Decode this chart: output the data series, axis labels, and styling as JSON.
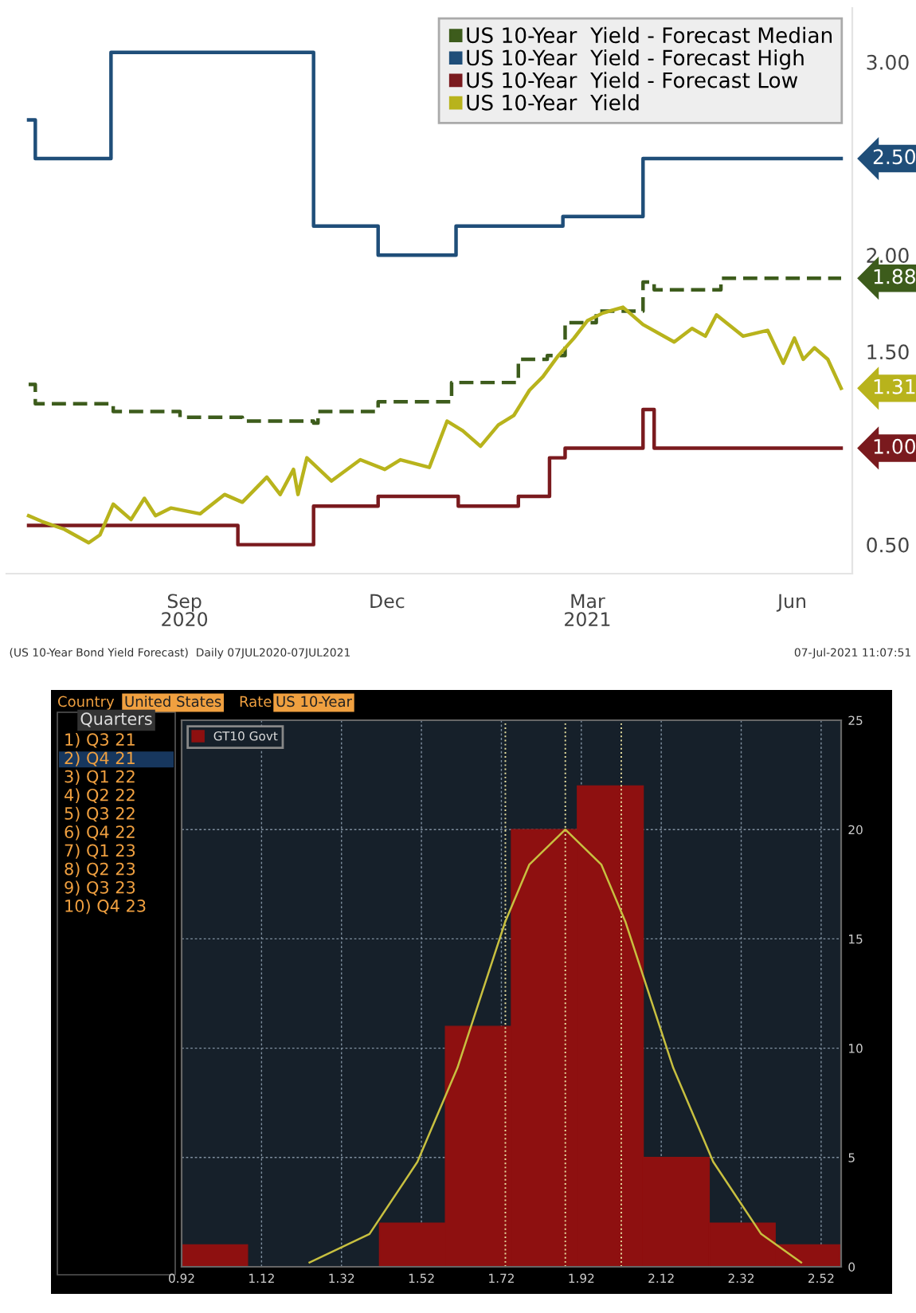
{
  "chart_data": [
    {
      "type": "line",
      "xlim": [
        "2020-06-27",
        "2021-07-12"
      ],
      "ylim": [
        0.35,
        3.28
      ],
      "xticks": [
        {
          "value": "2020-09-15",
          "label": "Sep\n2020"
        },
        {
          "value": "2020-12-15",
          "label": "Dec"
        },
        {
          "value": "2021-03-15",
          "label": "Mar\n2021"
        },
        {
          "value": "2021-06-15",
          "label": "Jun"
        }
      ],
      "yticks": [
        {
          "value": 0.5,
          "label": "0.50"
        },
        {
          "value": 1.5,
          "label": "1.50"
        },
        {
          "value": 2.0,
          "label": "2.00"
        },
        {
          "value": 3.0,
          "label": "3.00"
        }
      ],
      "legend": "top right",
      "grid": false,
      "annotations": [
        "(US 10-Year Bond Yield Forecast)  Daily 07JUL2020-07JUL2021",
        "07-Jul-2021 11:07:51"
      ],
      "series": [
        {
          "name": "US 10-Year  Yield - Forecast Median",
          "type": "step",
          "line_style": "dashed",
          "color": "#3d5c1c",
          "x": [
            "2020-07-07",
            "2020-07-10",
            "2020-08-14",
            "2020-09-13",
            "2020-10-11",
            "2020-11-12",
            "2020-11-14",
            "2020-12-11",
            "2021-01-13",
            "2021-02-12",
            "2021-02-25",
            "2021-03-05",
            "2021-03-19",
            "2021-04-09",
            "2021-04-14",
            "2021-05-14",
            "2021-07-07"
          ],
          "values": [
            1.33,
            1.23,
            1.19,
            1.16,
            1.14,
            1.13,
            1.19,
            1.24,
            1.34,
            1.46,
            1.48,
            1.65,
            1.71,
            1.86,
            1.82,
            1.88,
            1.88
          ],
          "value_labels": [
            null,
            null,
            null,
            null,
            null,
            null,
            null,
            null,
            null,
            null,
            null,
            null,
            null,
            null,
            null,
            null,
            "1.88"
          ]
        },
        {
          "name": "US 10-Year  Yield - Forecast High",
          "type": "step",
          "color": "#1f4e79",
          "x": [
            "2020-07-07",
            "2020-07-10",
            "2020-08-13",
            "2020-11-12",
            "2020-12-11",
            "2021-01-15",
            "2021-03-04",
            "2021-04-09",
            "2021-07-07"
          ],
          "values": [
            2.7,
            2.5,
            3.05,
            2.15,
            2.0,
            2.15,
            2.2,
            2.5,
            2.5
          ],
          "value_labels": [
            null,
            null,
            null,
            null,
            null,
            null,
            null,
            null,
            "2.50"
          ]
        },
        {
          "name": "US 10-Year  Yield - Forecast Low",
          "type": "step",
          "color": "#7a1a1e",
          "x": [
            "2020-07-07",
            "2020-10-09",
            "2020-11-12",
            "2020-12-11",
            "2021-01-16",
            "2021-02-12",
            "2021-02-26",
            "2021-03-05",
            "2021-04-09",
            "2021-04-14",
            "2021-07-07"
          ],
          "values": [
            0.6,
            0.5,
            0.7,
            0.75,
            0.7,
            0.75,
            0.95,
            1.0,
            1.2,
            1.0,
            1.0
          ],
          "value_labels": [
            null,
            null,
            null,
            null,
            null,
            null,
            null,
            null,
            null,
            null,
            "1.00"
          ]
        },
        {
          "name": "US 10-Year  Yield",
          "color": "#b8b31c",
          "x": [
            "2020-07-07",
            "2020-07-13",
            "2020-07-23",
            "2020-08-03",
            "2020-08-08",
            "2020-08-14",
            "2020-08-22",
            "2020-08-28",
            "2020-09-02",
            "2020-09-09",
            "2020-09-22",
            "2020-10-03",
            "2020-10-11",
            "2020-10-22",
            "2020-10-28",
            "2020-11-03",
            "2020-11-05",
            "2020-11-09",
            "2020-11-20",
            "2020-12-03",
            "2020-12-14",
            "2020-12-21",
            "2021-01-03",
            "2021-01-11",
            "2021-01-18",
            "2021-01-26",
            "2021-02-03",
            "2021-02-10",
            "2021-02-17",
            "2021-02-23",
            "2021-03-02",
            "2021-03-09",
            "2021-03-15",
            "2021-03-22",
            "2021-03-31",
            "2021-04-09",
            "2021-04-23",
            "2021-05-01",
            "2021-05-07",
            "2021-05-12",
            "2021-05-24",
            "2021-06-04",
            "2021-06-11",
            "2021-06-16",
            "2021-06-20",
            "2021-06-25",
            "2021-07-01",
            "2021-07-07"
          ],
          "values": [
            0.65,
            0.62,
            0.58,
            0.51,
            0.55,
            0.71,
            0.63,
            0.74,
            0.65,
            0.69,
            0.66,
            0.76,
            0.72,
            0.85,
            0.76,
            0.89,
            0.76,
            0.95,
            0.83,
            0.94,
            0.89,
            0.94,
            0.9,
            1.14,
            1.09,
            1.01,
            1.12,
            1.17,
            1.3,
            1.37,
            1.48,
            1.57,
            1.66,
            1.7,
            1.73,
            1.64,
            1.55,
            1.62,
            1.58,
            1.69,
            1.58,
            1.61,
            1.44,
            1.57,
            1.46,
            1.52,
            1.46,
            1.31
          ],
          "value_labels": [
            null,
            null,
            null,
            null,
            null,
            null,
            null,
            null,
            null,
            null,
            null,
            null,
            null,
            null,
            null,
            null,
            null,
            null,
            null,
            null,
            null,
            null,
            null,
            null,
            null,
            null,
            null,
            null,
            null,
            null,
            null,
            null,
            null,
            null,
            null,
            null,
            null,
            null,
            null,
            null,
            null,
            null,
            null,
            null,
            null,
            null,
            null,
            "1.31"
          ]
        }
      ]
    },
    {
      "type": "histogram",
      "xlim": [
        0.92,
        2.57
      ],
      "ylim": [
        0,
        25
      ],
      "xticks": [
        0.92,
        1.12,
        1.32,
        1.52,
        1.72,
        1.92,
        2.12,
        2.32,
        2.52
      ],
      "yticks": [
        0,
        5,
        10,
        15,
        20,
        25
      ],
      "grid": true,
      "legend": "top left",
      "annotations": [
        "Country",
        "United States",
        "Rate",
        "US 10-Year",
        "Quarters",
        "1) Q3 21",
        "2) Q4 21",
        "3) Q1 22",
        "4) Q2 22",
        "5) Q3 22",
        "6) Q4 22",
        "7) Q1 23",
        "8) Q2 23",
        "9) Q3 23",
        "10) Q4 23"
      ],
      "ref_lines": [
        {
          "axis": "x",
          "value": 1.73,
          "color": "#e8e0a0",
          "line_style": "dotted"
        },
        {
          "axis": "x",
          "value": 1.88,
          "color": "#e8e0a0",
          "line_style": "dotted"
        },
        {
          "axis": "x",
          "value": 2.02,
          "color": "#e8e0a0",
          "line_style": "dotted"
        }
      ],
      "series": [
        {
          "name": "GT10 Govt",
          "color": "#8e1010",
          "bins": [
            0.92,
            1.085,
            1.25,
            1.415,
            1.58,
            1.745,
            1.91,
            2.075,
            2.24,
            2.405,
            2.57
          ],
          "values": [
            1,
            0,
            0,
            2,
            11,
            20,
            22,
            5,
            2,
            1
          ]
        },
        {
          "type": "line",
          "color": "#c8c040",
          "x": [
            1.24,
            1.39,
            1.51,
            1.61,
            1.73,
            1.79,
            1.88,
            1.97,
            2.03,
            2.15,
            2.25,
            2.37,
            2.47
          ],
          "values": [
            0.2,
            1.5,
            4.8,
            9.1,
            15.8,
            18.4,
            20,
            18.4,
            15.8,
            9.1,
            4.8,
            1.5,
            0.2
          ]
        }
      ]
    }
  ]
}
